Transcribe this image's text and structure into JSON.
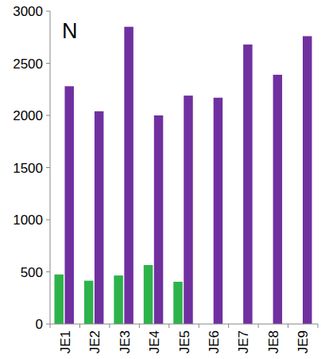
{
  "chart_data": {
    "type": "bar",
    "title": "N",
    "categories": [
      "JE1",
      "JE2",
      "JE3",
      "JE4",
      "JE5",
      "JE6",
      "JE7",
      "JE8",
      "JE9"
    ],
    "series": [
      {
        "color": "#2eb34b",
        "values": [
          475,
          415,
          465,
          565,
          405,
          null,
          null,
          null,
          null
        ]
      },
      {
        "color": "#7030a0",
        "values": [
          2280,
          2040,
          2850,
          2000,
          2190,
          2170,
          2680,
          2390,
          2760
        ]
      }
    ],
    "ylim": [
      0,
      3000
    ],
    "yticks": [
      0,
      500,
      1000,
      1500,
      2000,
      2500,
      3000
    ],
    "grid": false
  }
}
